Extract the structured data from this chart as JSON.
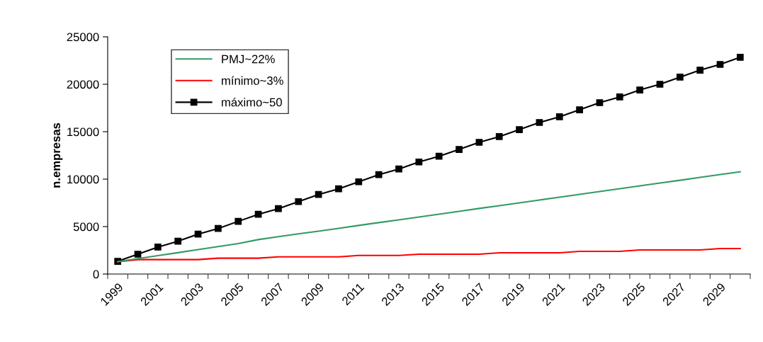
{
  "chart_data": {
    "type": "line",
    "ylabel": "n.empresas",
    "categories": [
      "1999",
      null,
      "2001",
      null,
      "2003",
      null,
      "2005",
      null,
      "2007",
      null,
      "2009",
      null,
      "2011",
      null,
      "2013",
      null,
      "2015",
      null,
      "2017",
      null,
      "2019",
      null,
      "2021",
      null,
      "2023",
      null,
      "2025",
      null,
      "2027",
      null,
      "2029",
      null
    ],
    "series": [
      {
        "name": "PMJ~22%",
        "color": "#339966",
        "marker": "none",
        "values": [
          1300,
          1620,
          1940,
          2250,
          2570,
          2890,
          3210,
          3630,
          3930,
          4230,
          4520,
          4820,
          5120,
          5420,
          5710,
          6010,
          6310,
          6610,
          6910,
          7200,
          7500,
          7800,
          8100,
          8400,
          8690,
          8990,
          9290,
          9590,
          9880,
          10180,
          10480,
          10770
        ]
      },
      {
        "name": "mínimo~3%",
        "color": "#ff0000",
        "marker": "none",
        "values": [
          1300,
          1520,
          1520,
          1520,
          1520,
          1670,
          1670,
          1670,
          1810,
          1810,
          1810,
          1810,
          1960,
          1960,
          1960,
          2090,
          2090,
          2090,
          2090,
          2240,
          2240,
          2240,
          2240,
          2390,
          2390,
          2390,
          2540,
          2540,
          2540,
          2540,
          2690,
          2690
        ]
      },
      {
        "name": "máximo~50",
        "color": "#000000",
        "marker": "square",
        "values": [
          1340,
          2090,
          2840,
          3460,
          4200,
          4800,
          5550,
          6290,
          6890,
          7630,
          8380,
          8980,
          9720,
          10470,
          11070,
          11810,
          12410,
          13130,
          13880,
          14480,
          15220,
          15970,
          16570,
          17310,
          18060,
          18660,
          19400,
          20000,
          20750,
          21490,
          22090,
          22840
        ]
      }
    ],
    "ylim": [
      0,
      25000
    ],
    "yticks": [
      0,
      5000,
      10000,
      15000,
      20000,
      25000
    ],
    "grid": false,
    "legend": "top left",
    "line_style": "solid"
  }
}
